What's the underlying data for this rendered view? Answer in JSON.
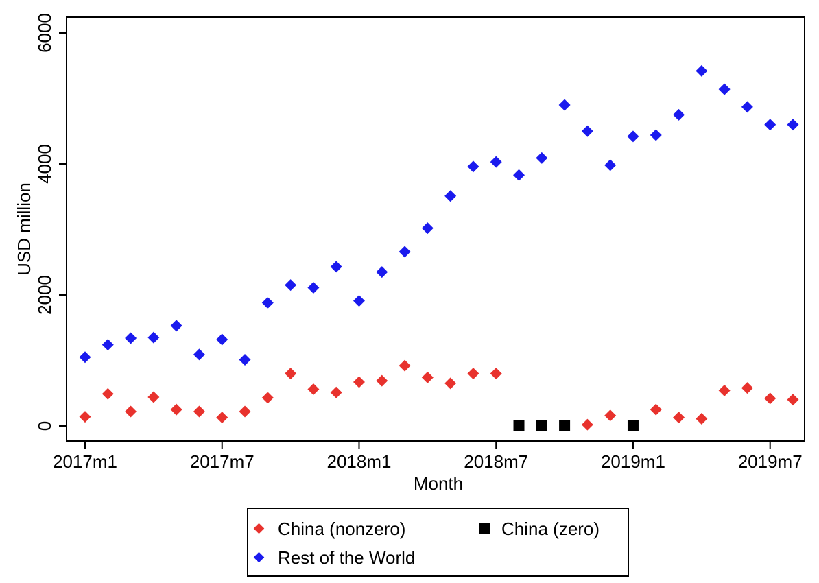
{
  "chart_data": {
    "type": "scatter",
    "title": "",
    "xlabel": "Month",
    "ylabel": "USD million",
    "x_range": [
      0,
      31
    ],
    "ylim": [
      0,
      6000
    ],
    "y_ticks": [
      0,
      2000,
      4000,
      6000
    ],
    "x_ticks": [
      {
        "x": 0,
        "label": "2017m1"
      },
      {
        "x": 6,
        "label": "2017m7"
      },
      {
        "x": 12,
        "label": "2018m1"
      },
      {
        "x": 18,
        "label": "2018m7"
      },
      {
        "x": 24,
        "label": "2019m1"
      },
      {
        "x": 30,
        "label": "2019m7"
      }
    ],
    "grid": false,
    "legend_position": "bottom",
    "series": [
      {
        "name": "China (nonzero)",
        "marker": "diamond",
        "color": "#e8322d",
        "points": [
          {
            "x": 0,
            "y": 140
          },
          {
            "x": 1,
            "y": 490
          },
          {
            "x": 2,
            "y": 220
          },
          {
            "x": 3,
            "y": 440
          },
          {
            "x": 4,
            "y": 250
          },
          {
            "x": 5,
            "y": 220
          },
          {
            "x": 6,
            "y": 130
          },
          {
            "x": 7,
            "y": 220
          },
          {
            "x": 8,
            "y": 430
          },
          {
            "x": 9,
            "y": 800
          },
          {
            "x": 10,
            "y": 560
          },
          {
            "x": 11,
            "y": 510
          },
          {
            "x": 12,
            "y": 670
          },
          {
            "x": 13,
            "y": 690
          },
          {
            "x": 14,
            "y": 920
          },
          {
            "x": 15,
            "y": 740
          },
          {
            "x": 16,
            "y": 650
          },
          {
            "x": 17,
            "y": 800
          },
          {
            "x": 18,
            "y": 800
          },
          {
            "x": 22,
            "y": 20
          },
          {
            "x": 23,
            "y": 160
          },
          {
            "x": 25,
            "y": 250
          },
          {
            "x": 26,
            "y": 130
          },
          {
            "x": 27,
            "y": 110
          },
          {
            "x": 28,
            "y": 540
          },
          {
            "x": 29,
            "y": 580
          },
          {
            "x": 30,
            "y": 420
          },
          {
            "x": 31,
            "y": 400
          }
        ]
      },
      {
        "name": "China (zero)",
        "marker": "square",
        "color": "#000000",
        "points": [
          {
            "x": 19,
            "y": 0
          },
          {
            "x": 20,
            "y": 0
          },
          {
            "x": 21,
            "y": 0
          },
          {
            "x": 24,
            "y": 0
          }
        ]
      },
      {
        "name": "Rest of the World",
        "marker": "diamond",
        "color": "#1a1aee",
        "points": [
          {
            "x": 0,
            "y": 1050
          },
          {
            "x": 1,
            "y": 1240
          },
          {
            "x": 2,
            "y": 1340
          },
          {
            "x": 3,
            "y": 1350
          },
          {
            "x": 4,
            "y": 1530
          },
          {
            "x": 5,
            "y": 1090
          },
          {
            "x": 6,
            "y": 1320
          },
          {
            "x": 7,
            "y": 1010
          },
          {
            "x": 8,
            "y": 1880
          },
          {
            "x": 9,
            "y": 2150
          },
          {
            "x": 10,
            "y": 2110
          },
          {
            "x": 11,
            "y": 2430
          },
          {
            "x": 12,
            "y": 1910
          },
          {
            "x": 13,
            "y": 2350
          },
          {
            "x": 14,
            "y": 2660
          },
          {
            "x": 15,
            "y": 3020
          },
          {
            "x": 16,
            "y": 3510
          },
          {
            "x": 17,
            "y": 3960
          },
          {
            "x": 18,
            "y": 4030
          },
          {
            "x": 19,
            "y": 3830
          },
          {
            "x": 20,
            "y": 4090
          },
          {
            "x": 21,
            "y": 4900
          },
          {
            "x": 22,
            "y": 4500
          },
          {
            "x": 23,
            "y": 3980
          },
          {
            "x": 24,
            "y": 4420
          },
          {
            "x": 25,
            "y": 4440
          },
          {
            "x": 26,
            "y": 4750
          },
          {
            "x": 27,
            "y": 5420
          },
          {
            "x": 28,
            "y": 5140
          },
          {
            "x": 29,
            "y": 4870
          },
          {
            "x": 30,
            "y": 4600
          },
          {
            "x": 31,
            "y": 4600
          }
        ]
      }
    ]
  }
}
